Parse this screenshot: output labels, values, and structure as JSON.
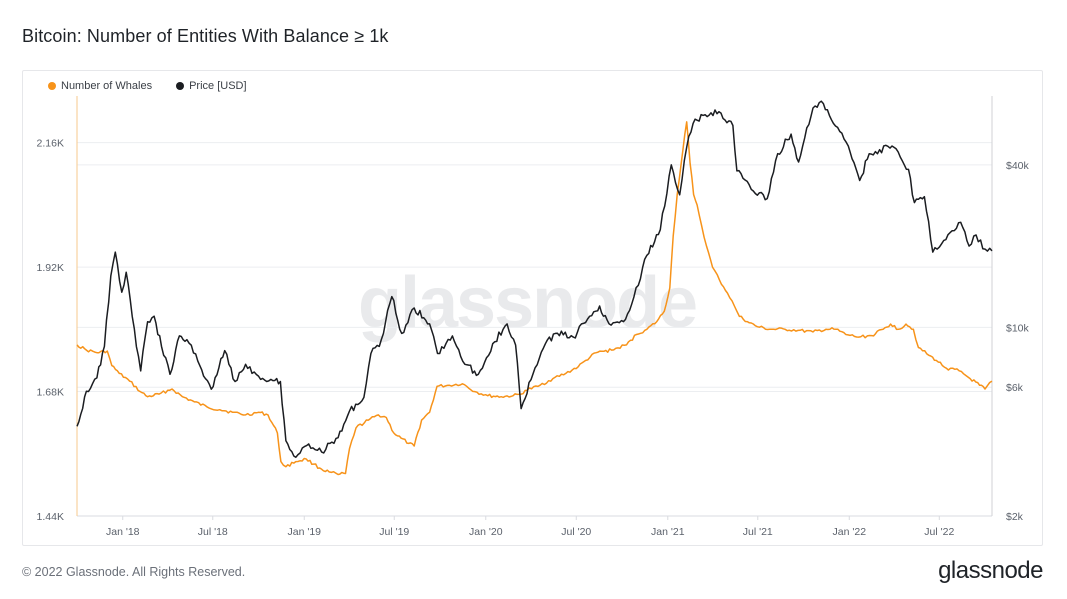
{
  "title": "Bitcoin: Number of Entities With Balance ≥ 1k",
  "footer": "© 2022 Glassnode. All Rights Reserved.",
  "brand": "glassnode",
  "watermark": "glassnode",
  "colors": {
    "whales": "#f7931a",
    "price": "#1b1d21",
    "grid": "#eceef1",
    "axis": "#d9dbe0"
  },
  "chart_data": {
    "type": "line",
    "title": "Bitcoin: Number of Entities With Balance ≥ 1k",
    "legend_position": "top-left",
    "grid": true,
    "x_axis": {
      "range": [
        "2017-10-01",
        "2022-10-15"
      ],
      "ticks": [
        {
          "date": "2018-01-01",
          "label": "Jan '18"
        },
        {
          "date": "2018-07-01",
          "label": "Jul '18"
        },
        {
          "date": "2019-01-01",
          "label": "Jan '19"
        },
        {
          "date": "2019-07-01",
          "label": "Jul '19"
        },
        {
          "date": "2020-01-01",
          "label": "Jan '20"
        },
        {
          "date": "2020-07-01",
          "label": "Jul '20"
        },
        {
          "date": "2021-01-01",
          "label": "Jan '21"
        },
        {
          "date": "2021-07-01",
          "label": "Jul '21"
        },
        {
          "date": "2022-01-01",
          "label": "Jan '22"
        },
        {
          "date": "2022-07-01",
          "label": "Jul '22"
        }
      ]
    },
    "y_left": {
      "scale": "linear",
      "range": [
        1440,
        2250
      ],
      "ticks": [
        {
          "value": 1440,
          "label": "1.44K"
        },
        {
          "value": 1680,
          "label": "1.68K"
        },
        {
          "value": 1920,
          "label": "1.92K"
        },
        {
          "value": 2160,
          "label": "2.16K"
        }
      ]
    },
    "y_right": {
      "scale": "log",
      "range": [
        2000,
        72000
      ],
      "ticks": [
        {
          "value": 2000,
          "label": "$2k"
        },
        {
          "value": 6000,
          "label": "$6k"
        },
        {
          "value": 10000,
          "label": "$10k"
        },
        {
          "value": 40000,
          "label": "$40k"
        }
      ]
    },
    "series": [
      {
        "name": "Number of Whales",
        "axis": "left",
        "color": "#f7931a",
        "points": [
          [
            "2017-10-01",
            1770
          ],
          [
            "2017-10-20",
            1760
          ],
          [
            "2017-11-10",
            1755
          ],
          [
            "2017-12-01",
            1758
          ],
          [
            "2017-12-10",
            1730
          ],
          [
            "2017-12-25",
            1715
          ],
          [
            "2018-01-15",
            1700
          ],
          [
            "2018-02-05",
            1680
          ],
          [
            "2018-02-20",
            1670
          ],
          [
            "2018-03-15",
            1675
          ],
          [
            "2018-04-10",
            1685
          ],
          [
            "2018-05-01",
            1670
          ],
          [
            "2018-05-25",
            1660
          ],
          [
            "2018-06-20",
            1650
          ],
          [
            "2018-07-15",
            1645
          ],
          [
            "2018-08-10",
            1640
          ],
          [
            "2018-09-05",
            1635
          ],
          [
            "2018-10-01",
            1640
          ],
          [
            "2018-10-20",
            1635
          ],
          [
            "2018-11-08",
            1600
          ],
          [
            "2018-11-15",
            1545
          ],
          [
            "2018-11-25",
            1535
          ],
          [
            "2018-12-15",
            1545
          ],
          [
            "2019-01-05",
            1550
          ],
          [
            "2019-01-20",
            1540
          ],
          [
            "2019-02-05",
            1530
          ],
          [
            "2019-02-20",
            1525
          ],
          [
            "2019-03-10",
            1520
          ],
          [
            "2019-03-25",
            1522
          ],
          [
            "2019-04-02",
            1570
          ],
          [
            "2019-04-15",
            1610
          ],
          [
            "2019-05-10",
            1625
          ],
          [
            "2019-05-30",
            1635
          ],
          [
            "2019-06-15",
            1630
          ],
          [
            "2019-06-30",
            1600
          ],
          [
            "2019-07-15",
            1590
          ],
          [
            "2019-07-30",
            1580
          ],
          [
            "2019-08-10",
            1575
          ],
          [
            "2019-08-25",
            1625
          ],
          [
            "2019-09-10",
            1640
          ],
          [
            "2019-09-25",
            1690
          ],
          [
            "2019-10-20",
            1692
          ],
          [
            "2019-11-15",
            1695
          ],
          [
            "2019-12-10",
            1680
          ],
          [
            "2020-01-05",
            1672
          ],
          [
            "2020-02-01",
            1670
          ],
          [
            "2020-02-25",
            1672
          ],
          [
            "2020-03-12",
            1675
          ],
          [
            "2020-03-20",
            1682
          ],
          [
            "2020-04-15",
            1690
          ],
          [
            "2020-05-15",
            1705
          ],
          [
            "2020-06-10",
            1715
          ],
          [
            "2020-07-05",
            1728
          ],
          [
            "2020-07-20",
            1740
          ],
          [
            "2020-08-10",
            1755
          ],
          [
            "2020-09-10",
            1760
          ],
          [
            "2020-10-10",
            1770
          ],
          [
            "2020-10-30",
            1790
          ],
          [
            "2020-11-20",
            1800
          ],
          [
            "2020-12-10",
            1815
          ],
          [
            "2020-12-25",
            1835
          ],
          [
            "2021-01-05",
            1880
          ],
          [
            "2021-01-12",
            1980
          ],
          [
            "2021-01-20",
            2060
          ],
          [
            "2021-01-28",
            2120
          ],
          [
            "2021-02-08",
            2200
          ],
          [
            "2021-02-15",
            2120
          ],
          [
            "2021-02-22",
            2060
          ],
          [
            "2021-03-01",
            2040
          ],
          [
            "2021-03-10",
            2000
          ],
          [
            "2021-03-20",
            1960
          ],
          [
            "2021-04-01",
            1920
          ],
          [
            "2021-04-15",
            1895
          ],
          [
            "2021-05-01",
            1870
          ],
          [
            "2021-05-15",
            1845
          ],
          [
            "2021-05-25",
            1825
          ],
          [
            "2021-06-10",
            1815
          ],
          [
            "2021-06-30",
            1805
          ],
          [
            "2021-07-25",
            1800
          ],
          [
            "2021-08-25",
            1800
          ],
          [
            "2021-09-20",
            1798
          ],
          [
            "2021-10-20",
            1795
          ],
          [
            "2021-11-15",
            1800
          ],
          [
            "2021-12-05",
            1800
          ],
          [
            "2021-12-25",
            1790
          ],
          [
            "2022-01-20",
            1785
          ],
          [
            "2022-02-15",
            1788
          ],
          [
            "2022-03-10",
            1800
          ],
          [
            "2022-03-25",
            1810
          ],
          [
            "2022-04-10",
            1800
          ],
          [
            "2022-04-25",
            1810
          ],
          [
            "2022-05-10",
            1800
          ],
          [
            "2022-05-20",
            1765
          ],
          [
            "2022-06-10",
            1750
          ],
          [
            "2022-06-25",
            1740
          ],
          [
            "2022-07-15",
            1725
          ],
          [
            "2022-08-10",
            1720
          ],
          [
            "2022-09-01",
            1705
          ],
          [
            "2022-09-20",
            1692
          ],
          [
            "2022-10-01",
            1685
          ],
          [
            "2022-10-15",
            1700
          ]
        ]
      },
      {
        "name": "Price [USD]",
        "axis": "right",
        "color": "#1b1d21",
        "points": [
          [
            "2017-10-01",
            4300
          ],
          [
            "2017-10-20",
            5800
          ],
          [
            "2017-11-10",
            6500
          ],
          [
            "2017-11-25",
            8500
          ],
          [
            "2017-12-08",
            15500
          ],
          [
            "2017-12-17",
            19000
          ],
          [
            "2017-12-30",
            13500
          ],
          [
            "2018-01-08",
            16000
          ],
          [
            "2018-01-20",
            11000
          ],
          [
            "2018-02-06",
            6900
          ],
          [
            "2018-02-20",
            10500
          ],
          [
            "2018-03-05",
            11000
          ],
          [
            "2018-03-20",
            8500
          ],
          [
            "2018-04-06",
            6700
          ],
          [
            "2018-04-25",
            9300
          ],
          [
            "2018-05-10",
            9000
          ],
          [
            "2018-06-01",
            7500
          ],
          [
            "2018-06-28",
            5900
          ],
          [
            "2018-07-25",
            8200
          ],
          [
            "2018-08-15",
            6300
          ],
          [
            "2018-09-05",
            7300
          ],
          [
            "2018-10-01",
            6600
          ],
          [
            "2018-10-30",
            6350
          ],
          [
            "2018-11-14",
            6300
          ],
          [
            "2018-11-25",
            3800
          ],
          [
            "2018-12-15",
            3300
          ],
          [
            "2019-01-10",
            3700
          ],
          [
            "2019-02-05",
            3450
          ],
          [
            "2019-03-10",
            3900
          ],
          [
            "2019-04-02",
            4900
          ],
          [
            "2019-05-01",
            5500
          ],
          [
            "2019-05-15",
            8000
          ],
          [
            "2019-06-01",
            8500
          ],
          [
            "2019-06-26",
            13000
          ],
          [
            "2019-07-16",
            9500
          ],
          [
            "2019-08-10",
            11800
          ],
          [
            "2019-09-10",
            10300
          ],
          [
            "2019-09-26",
            8000
          ],
          [
            "2019-10-26",
            9300
          ],
          [
            "2019-11-20",
            7300
          ],
          [
            "2019-12-17",
            6700
          ],
          [
            "2020-01-15",
            8700
          ],
          [
            "2020-02-13",
            10300
          ],
          [
            "2020-03-01",
            8600
          ],
          [
            "2020-03-12",
            5000
          ],
          [
            "2020-04-01",
            6400
          ],
          [
            "2020-04-30",
            8700
          ],
          [
            "2020-05-20",
            9500
          ],
          [
            "2020-06-25",
            9200
          ],
          [
            "2020-07-28",
            11000
          ],
          [
            "2020-08-17",
            12000
          ],
          [
            "2020-09-05",
            10300
          ],
          [
            "2020-10-08",
            10700
          ],
          [
            "2020-10-25",
            13000
          ],
          [
            "2020-11-20",
            18500
          ],
          [
            "2020-12-17",
            23000
          ],
          [
            "2021-01-08",
            40000
          ],
          [
            "2021-01-25",
            31000
          ],
          [
            "2021-02-08",
            46500
          ],
          [
            "2021-02-21",
            57000
          ],
          [
            "2021-03-13",
            61000
          ],
          [
            "2021-04-14",
            63000
          ],
          [
            "2021-05-12",
            56000
          ],
          [
            "2021-05-20",
            38000
          ],
          [
            "2021-06-22",
            32000
          ],
          [
            "2021-07-20",
            30000
          ],
          [
            "2021-08-10",
            44000
          ],
          [
            "2021-09-06",
            52000
          ],
          [
            "2021-09-21",
            41000
          ],
          [
            "2021-10-20",
            65000
          ],
          [
            "2021-11-10",
            67500
          ],
          [
            "2021-11-30",
            57000
          ],
          [
            "2021-12-30",
            47000
          ],
          [
            "2022-01-22",
            35000
          ],
          [
            "2022-02-10",
            44000
          ],
          [
            "2022-03-28",
            47000
          ],
          [
            "2022-04-30",
            38500
          ],
          [
            "2022-05-12",
            29000
          ],
          [
            "2022-06-01",
            30500
          ],
          [
            "2022-06-18",
            19000
          ],
          [
            "2022-07-10",
            21000
          ],
          [
            "2022-08-13",
            24500
          ],
          [
            "2022-08-30",
            20000
          ],
          [
            "2022-09-13",
            22000
          ],
          [
            "2022-10-01",
            19500
          ],
          [
            "2022-10-15",
            19200
          ]
        ]
      }
    ]
  }
}
